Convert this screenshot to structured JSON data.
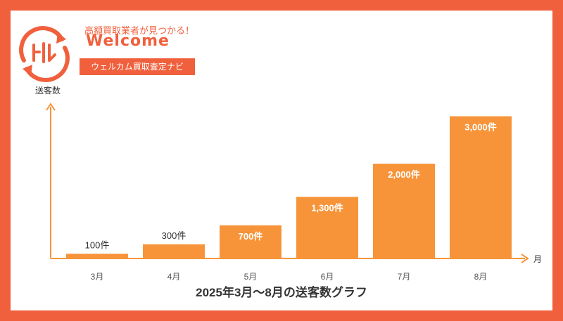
{
  "brand": {
    "tagline": "高額買取業者が見つかる！",
    "wordmark": "Welcome",
    "banner": "ウェルカム買取査定ナビ",
    "primary_color": "#f0603d"
  },
  "chart_data": {
    "type": "bar",
    "title": "2025年3月～8月の送客数グラフ",
    "xlabel": "月",
    "ylabel": "送客数",
    "categories": [
      "3月",
      "4月",
      "5月",
      "6月",
      "7月",
      "8月"
    ],
    "values": [
      100,
      300,
      700,
      1300,
      2000,
      3000
    ],
    "value_labels": [
      "100件",
      "300件",
      "700件",
      "1,300件",
      "2,000件",
      "3,000件"
    ],
    "ylim": [
      0,
      3200
    ],
    "bar_color": "#f7943a",
    "axis_color": "#f7943a",
    "grid": false
  }
}
